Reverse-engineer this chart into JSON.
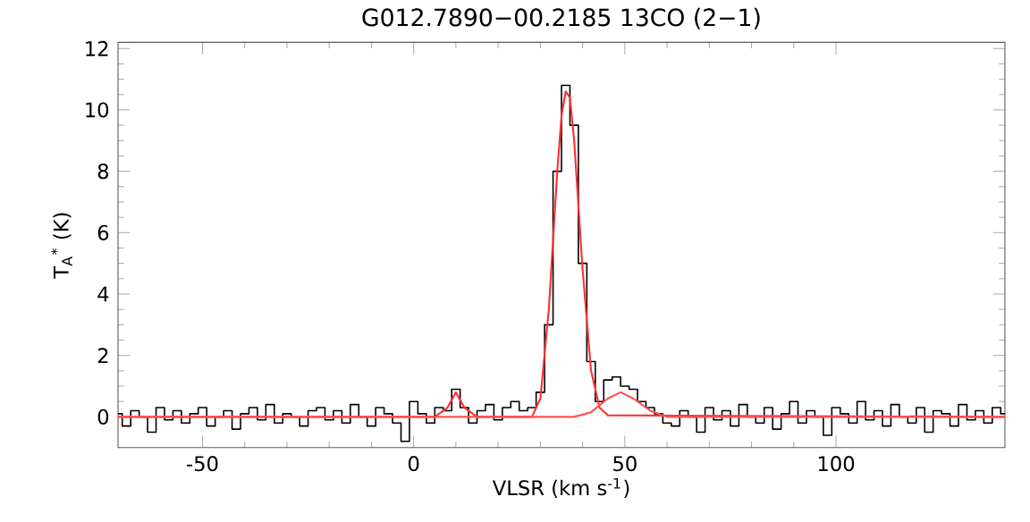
{
  "chart_data": {
    "type": "line",
    "title": "G012.7890−00.2185 13CO (2−1)",
    "xlabel": "VLSR (km s$^{-1}$)",
    "ylabel": "T$_{A}$$^{*}$ (K)",
    "xlim": [
      -70,
      140
    ],
    "ylim": [
      -1,
      12.2
    ],
    "xticks": [
      -50,
      0,
      50,
      100
    ],
    "yticks": [
      0,
      2,
      4,
      6,
      8,
      10,
      12
    ],
    "grid": false,
    "marker": "none",
    "series": [
      {
        "type": "step",
        "color": "#000000",
        "x": [
          -70,
          -68,
          -66,
          -64,
          -62,
          -60,
          -58,
          -56,
          -54,
          -52,
          -50,
          -48,
          -46,
          -44,
          -42,
          -40,
          -38,
          -36,
          -34,
          -32,
          -30,
          -28,
          -26,
          -24,
          -22,
          -20,
          -18,
          -16,
          -14,
          -12,
          -10,
          -8,
          -6,
          -4,
          -2,
          0,
          2,
          4,
          6,
          8,
          10,
          12,
          14,
          16,
          18,
          20,
          22,
          24,
          26,
          28,
          30,
          32,
          34,
          36,
          38,
          40,
          42,
          44,
          46,
          48,
          50,
          52,
          54,
          56,
          58,
          60,
          62,
          64,
          66,
          68,
          70,
          72,
          74,
          76,
          78,
          80,
          82,
          84,
          86,
          88,
          90,
          92,
          94,
          96,
          98,
          100,
          102,
          104,
          106,
          108,
          110,
          112,
          114,
          116,
          118,
          120,
          122,
          124,
          126,
          128,
          130,
          132,
          134,
          136,
          138,
          140
        ],
        "values": [
          0.1,
          -0.3,
          0.2,
          0.0,
          -0.5,
          0.3,
          -0.1,
          0.2,
          -0.2,
          0.1,
          0.3,
          -0.3,
          0.0,
          0.2,
          -0.4,
          0.1,
          0.3,
          -0.1,
          0.4,
          -0.2,
          0.1,
          0.0,
          -0.3,
          0.2,
          0.3,
          -0.1,
          0.2,
          -0.2,
          0.4,
          0.0,
          -0.3,
          0.3,
          0.1,
          -0.2,
          -0.8,
          0.5,
          0.1,
          -0.2,
          0.3,
          0.2,
          0.9,
          0.3,
          -0.2,
          0.2,
          0.4,
          -0.1,
          0.3,
          0.5,
          0.2,
          0.3,
          0.8,
          3.0,
          8.0,
          10.8,
          9.5,
          5.0,
          1.8,
          0.5,
          1.2,
          1.3,
          1.0,
          0.9,
          0.5,
          0.3,
          0.1,
          -0.2,
          -0.3,
          0.2,
          0.0,
          -0.5,
          0.3,
          -0.1,
          0.2,
          -0.3,
          0.4,
          0.0,
          -0.2,
          0.3,
          -0.4,
          0.1,
          0.5,
          -0.2,
          0.2,
          0.0,
          -0.6,
          0.3,
          0.1,
          -0.2,
          0.5,
          -0.1,
          0.2,
          -0.3,
          0.4,
          0.0,
          -0.2,
          0.3,
          -0.5,
          0.2,
          0.1,
          -0.3,
          0.4,
          -0.1,
          0.2,
          -0.2,
          0.3,
          0.1
        ]
      },
      {
        "color": "#ff3030",
        "x": [
          -70,
          5,
          8,
          10,
          12,
          15,
          28,
          30,
          32,
          34,
          35,
          36,
          37,
          38,
          40,
          42,
          44,
          46,
          140
        ],
        "values": [
          0,
          0,
          0.3,
          0.8,
          0.3,
          0,
          0,
          0.6,
          3.5,
          8.0,
          9.8,
          10.6,
          10.4,
          9.0,
          4.8,
          1.5,
          0.3,
          0.05,
          0
        ]
      },
      {
        "color": "#ff5050",
        "x": [
          -70,
          38,
          42,
          46,
          49,
          52,
          56,
          60,
          140
        ],
        "values": [
          0,
          0,
          0.15,
          0.6,
          0.8,
          0.6,
          0.2,
          0,
          0
        ]
      }
    ]
  }
}
